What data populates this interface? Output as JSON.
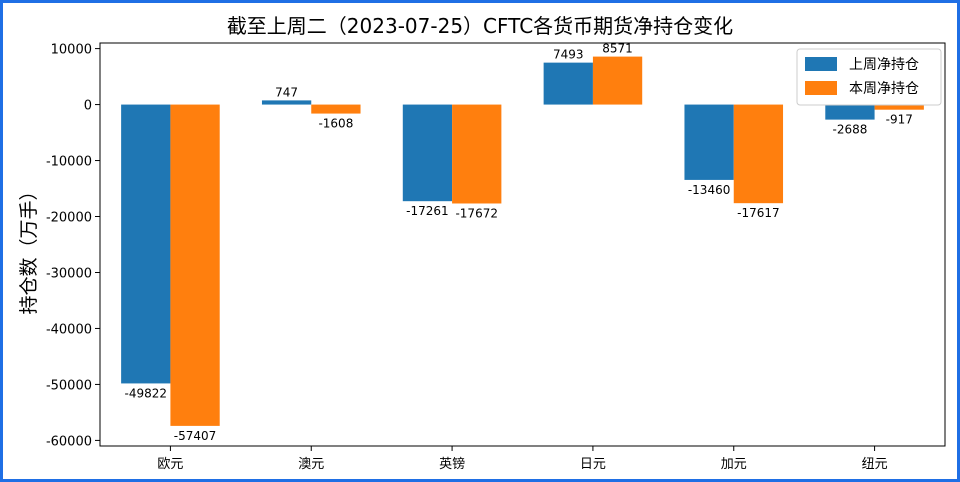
{
  "chart_data": {
    "type": "bar",
    "title": "截至上周二（2023-07-25）CFTC各货币期货净持仓变化",
    "xlabel": "",
    "ylabel": "持仓数（万手）",
    "categories": [
      "欧元",
      "澳元",
      "英镑",
      "日元",
      "加元",
      "纽元"
    ],
    "series": [
      {
        "name": "上周净持仓",
        "values": [
          -49822,
          747,
          -17261,
          7493,
          -13460,
          -2688
        ],
        "color": "#1f77b4"
      },
      {
        "name": "本周净持仓",
        "values": [
          -57407,
          -1608,
          -17672,
          8571,
          -17617,
          -917
        ],
        "color": "#ff7f0e"
      }
    ],
    "ylim": [
      -61000,
      11000
    ],
    "yticks": [
      10000,
      0,
      -10000,
      -20000,
      -30000,
      -40000,
      -50000,
      -60000
    ],
    "grid": false,
    "legend": "top-right"
  }
}
